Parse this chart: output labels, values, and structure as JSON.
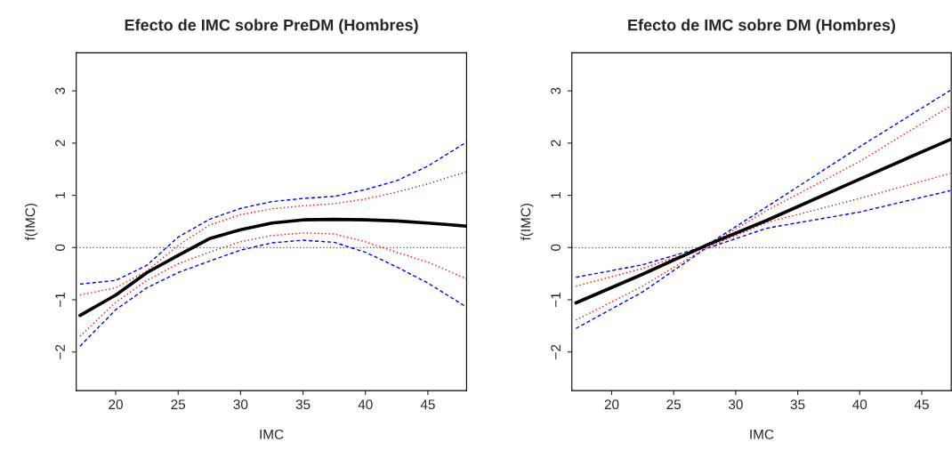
{
  "chart_data": [
    {
      "type": "line",
      "title": "Efecto de IMC sobre PreDM (Hombres)",
      "xlabel": "IMC",
      "ylabel": "f(IMC)",
      "xlim": [
        16.84,
        48.1
      ],
      "xticks": [
        20,
        25,
        30,
        35,
        40,
        45
      ],
      "ylim": [
        -2.74,
        3.73
      ],
      "yticks": [
        -2,
        -1,
        0,
        1,
        2,
        3
      ],
      "grid": false,
      "legend": false,
      "x": [
        17.14,
        20,
        22.5,
        25,
        27.5,
        30,
        32.5,
        35,
        37.5,
        40,
        42.5,
        45,
        48.1
      ],
      "ref_lines": [
        {
          "axis": "y",
          "value": 0,
          "color": "#555555",
          "line_style": "dotted"
        }
      ],
      "series": [
        {
          "color": "#0000ff",
          "line_style": "dashed",
          "values": [
            -0.7,
            -0.63,
            -0.34,
            0.2,
            0.54,
            0.75,
            0.88,
            0.94,
            0.98,
            1.11,
            1.28,
            1.56,
            2.02
          ]
        },
        {
          "color": "#0000ff",
          "line_style": "dashed",
          "values": [
            -1.89,
            -1.19,
            -0.77,
            -0.48,
            -0.26,
            -0.05,
            0.09,
            0.14,
            0.1,
            -0.09,
            -0.37,
            -0.68,
            -1.14
          ]
        },
        {
          "color": "#ff0000",
          "line_style": "dotted",
          "values": [
            -0.91,
            -0.77,
            -0.45,
            0.04,
            0.43,
            0.63,
            0.74,
            0.8,
            0.84,
            0.93,
            1.06,
            1.22,
            1.45
          ]
        },
        {
          "color": "#ff0000",
          "line_style": "dotted",
          "values": [
            -1.7,
            -1.05,
            -0.63,
            -0.31,
            -0.09,
            0.11,
            0.23,
            0.28,
            0.26,
            0.11,
            -0.09,
            -0.28,
            -0.6
          ]
        },
        {
          "color": "#000000",
          "line_style": "solid",
          "values": [
            -1.3,
            -0.91,
            -0.48,
            -0.15,
            0.17,
            0.34,
            0.47,
            0.53,
            0.54,
            0.53,
            0.51,
            0.47,
            0.41
          ]
        }
      ]
    },
    {
      "type": "line",
      "title": "Efecto de IMC sobre DM (Hombres)",
      "xlabel": "IMC",
      "ylabel": "f(IMC)",
      "xlim": [
        16.79,
        47.38
      ],
      "xticks": [
        20,
        25,
        30,
        35,
        40,
        45
      ],
      "ylim": [
        -2.74,
        3.73
      ],
      "yticks": [
        -2,
        -1,
        0,
        1,
        2,
        3
      ],
      "grid": false,
      "legend": false,
      "x": [
        17.12,
        22.5,
        27.5,
        32.5,
        40,
        47.3
      ],
      "ref_lines": [
        {
          "axis": "y",
          "value": 0,
          "color": "#555555",
          "line_style": "dotted"
        }
      ],
      "series": [
        {
          "color": "#0000ff",
          "line_style": "dashed",
          "values": [
            -0.57,
            -0.33,
            0.02,
            0.78,
            1.93,
            3.01
          ]
        },
        {
          "color": "#0000ff",
          "line_style": "dashed",
          "values": [
            -1.55,
            -0.85,
            -0.03,
            0.37,
            0.68,
            1.09
          ]
        },
        {
          "color": "#ff0000",
          "line_style": "dotted",
          "values": [
            -0.74,
            -0.4,
            0.0,
            0.71,
            1.65,
            2.71
          ]
        },
        {
          "color": "#ff0000",
          "line_style": "dotted",
          "values": [
            -1.39,
            -0.74,
            -0.02,
            0.48,
            0.94,
            1.42
          ]
        },
        {
          "color": "#000000",
          "line_style": "solid",
          "values": [
            -1.06,
            -0.51,
            0.03,
            0.52,
            1.31,
            2.07
          ]
        }
      ]
    }
  ]
}
